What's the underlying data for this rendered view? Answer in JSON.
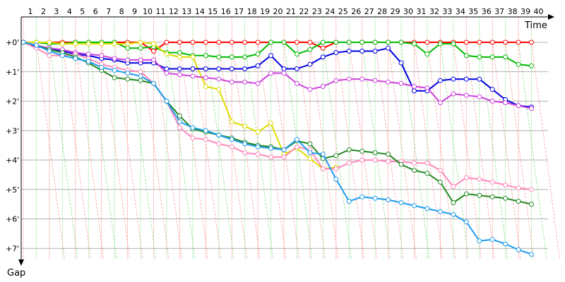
{
  "chart_data": {
    "type": "line",
    "xlabel": "Time",
    "ylabel": "Gap",
    "x_ticks": [
      "1",
      "2",
      "3",
      "4",
      "5",
      "6",
      "7",
      "8",
      "9",
      "10",
      "11",
      "12",
      "13",
      "14",
      "15",
      "16",
      "17",
      "18",
      "19",
      "20",
      "21",
      "22",
      "23",
      "24",
      "25",
      "26",
      "27",
      "28",
      "29",
      "30",
      "31",
      "32",
      "33",
      "34",
      "35",
      "36",
      "37",
      "38",
      "39",
      "40"
    ],
    "y_ticks": [
      "+0'",
      "+1'",
      "+2'",
      "+3'",
      "+4'",
      "+5'",
      "+6'",
      "+7'"
    ],
    "xlim": [
      1,
      40
    ],
    "ylim": [
      0,
      7
    ],
    "y_inverted": true,
    "grid": true,
    "series": [
      {
        "color": "#ff0000",
        "values": [
          0,
          0,
          0,
          0,
          0,
          0,
          0,
          0,
          0,
          0,
          0.3,
          0,
          0,
          0,
          0,
          0,
          0,
          0,
          0,
          0,
          0,
          0,
          0,
          0.2,
          0,
          0,
          0,
          0,
          0,
          0,
          0,
          0,
          0,
          0,
          0,
          0,
          0,
          0,
          0,
          0
        ]
      },
      {
        "color": "#00bb00",
        "values": [
          0,
          0,
          0.05,
          0.05,
          0,
          0,
          0,
          0,
          0.2,
          0.2,
          0.15,
          0.35,
          0.35,
          0.45,
          0.45,
          0.5,
          0.5,
          0.5,
          0.4,
          0,
          0,
          0.4,
          0.25,
          0,
          0,
          0,
          0,
          0,
          0,
          0,
          0.05,
          0.4,
          0.05,
          0.05,
          0.45,
          0.5,
          0.5,
          0.5,
          0.75,
          0.8
        ]
      },
      {
        "color": "#dddd00",
        "values": [
          0,
          0,
          0,
          0.05,
          0.05,
          0.05,
          0.05,
          0.05,
          0.05,
          0,
          0.05,
          0.4,
          0.5,
          0.5,
          1.5,
          1.6,
          2.7,
          2.85,
          3.05,
          2.75,
          3.8,
          3.6,
          3.95,
          4.3,
          4.25,
          null,
          null,
          null,
          null,
          null,
          null,
          null,
          null,
          null,
          null,
          null,
          null,
          null,
          null,
          null
        ]
      },
      {
        "color": "#0000dd",
        "values": [
          0,
          0.15,
          0.2,
          0.3,
          0.4,
          0.45,
          0.55,
          0.6,
          0.7,
          0.7,
          0.7,
          0.9,
          0.9,
          0.9,
          0.9,
          0.9,
          0.9,
          0.9,
          0.8,
          0.45,
          0.9,
          0.9,
          0.75,
          0.5,
          0.35,
          0.3,
          0.3,
          0.3,
          0.2,
          0.7,
          1.65,
          1.65,
          1.3,
          1.25,
          1.25,
          1.25,
          1.6,
          1.95,
          2.15,
          2.2
        ]
      },
      {
        "color": "#cc44dd",
        "values": [
          0,
          0.1,
          0.2,
          0.25,
          0.35,
          0.4,
          0.45,
          0.55,
          0.6,
          0.6,
          0.6,
          1.05,
          1.1,
          1.15,
          1.2,
          1.25,
          1.35,
          1.35,
          1.4,
          1.05,
          1.05,
          1.4,
          1.6,
          1.5,
          1.3,
          1.25,
          1.25,
          1.3,
          1.35,
          1.4,
          1.5,
          1.55,
          2.05,
          1.75,
          1.8,
          1.85,
          2.0,
          2.05,
          2.15,
          2.25
        ]
      },
      {
        "color": "#ff88bb",
        "values": [
          0,
          0.2,
          0.45,
          0.45,
          0.4,
          0.55,
          0.75,
          0.85,
          0.95,
          1.0,
          1.4,
          2.0,
          2.9,
          3.25,
          3.3,
          3.45,
          3.55,
          3.75,
          3.8,
          3.9,
          3.9,
          3.55,
          3.65,
          4.3,
          4.3,
          4.1,
          4.0,
          4.0,
          4.05,
          4.05,
          4.1,
          4.1,
          4.35,
          4.9,
          4.6,
          4.65,
          4.75,
          4.85,
          4.95,
          5.0
        ]
      },
      {
        "color": "#228822",
        "values": [
          0,
          0.1,
          0.25,
          0.35,
          0.5,
          0.7,
          0.95,
          1.2,
          1.25,
          1.3,
          1.4,
          2.0,
          2.5,
          2.95,
          3.05,
          3.15,
          3.25,
          3.4,
          3.5,
          3.55,
          3.65,
          3.35,
          3.45,
          3.95,
          3.85,
          3.65,
          3.7,
          3.75,
          3.8,
          4.15,
          4.35,
          4.45,
          4.75,
          5.45,
          5.15,
          5.2,
          5.25,
          5.3,
          5.4,
          5.5
        ]
      },
      {
        "color": "#1e9bee",
        "values": [
          0,
          0.1,
          0.3,
          0.45,
          0.55,
          0.65,
          0.85,
          0.95,
          1.05,
          1.15,
          1.4,
          2.0,
          2.7,
          2.9,
          3.0,
          3.15,
          3.3,
          3.45,
          3.55,
          3.6,
          3.65,
          3.3,
          3.75,
          3.8,
          4.65,
          5.4,
          5.25,
          5.3,
          5.35,
          5.45,
          5.55,
          5.65,
          5.75,
          5.85,
          6.1,
          6.75,
          6.7,
          6.85,
          7.05,
          7.2
        ]
      }
    ]
  }
}
